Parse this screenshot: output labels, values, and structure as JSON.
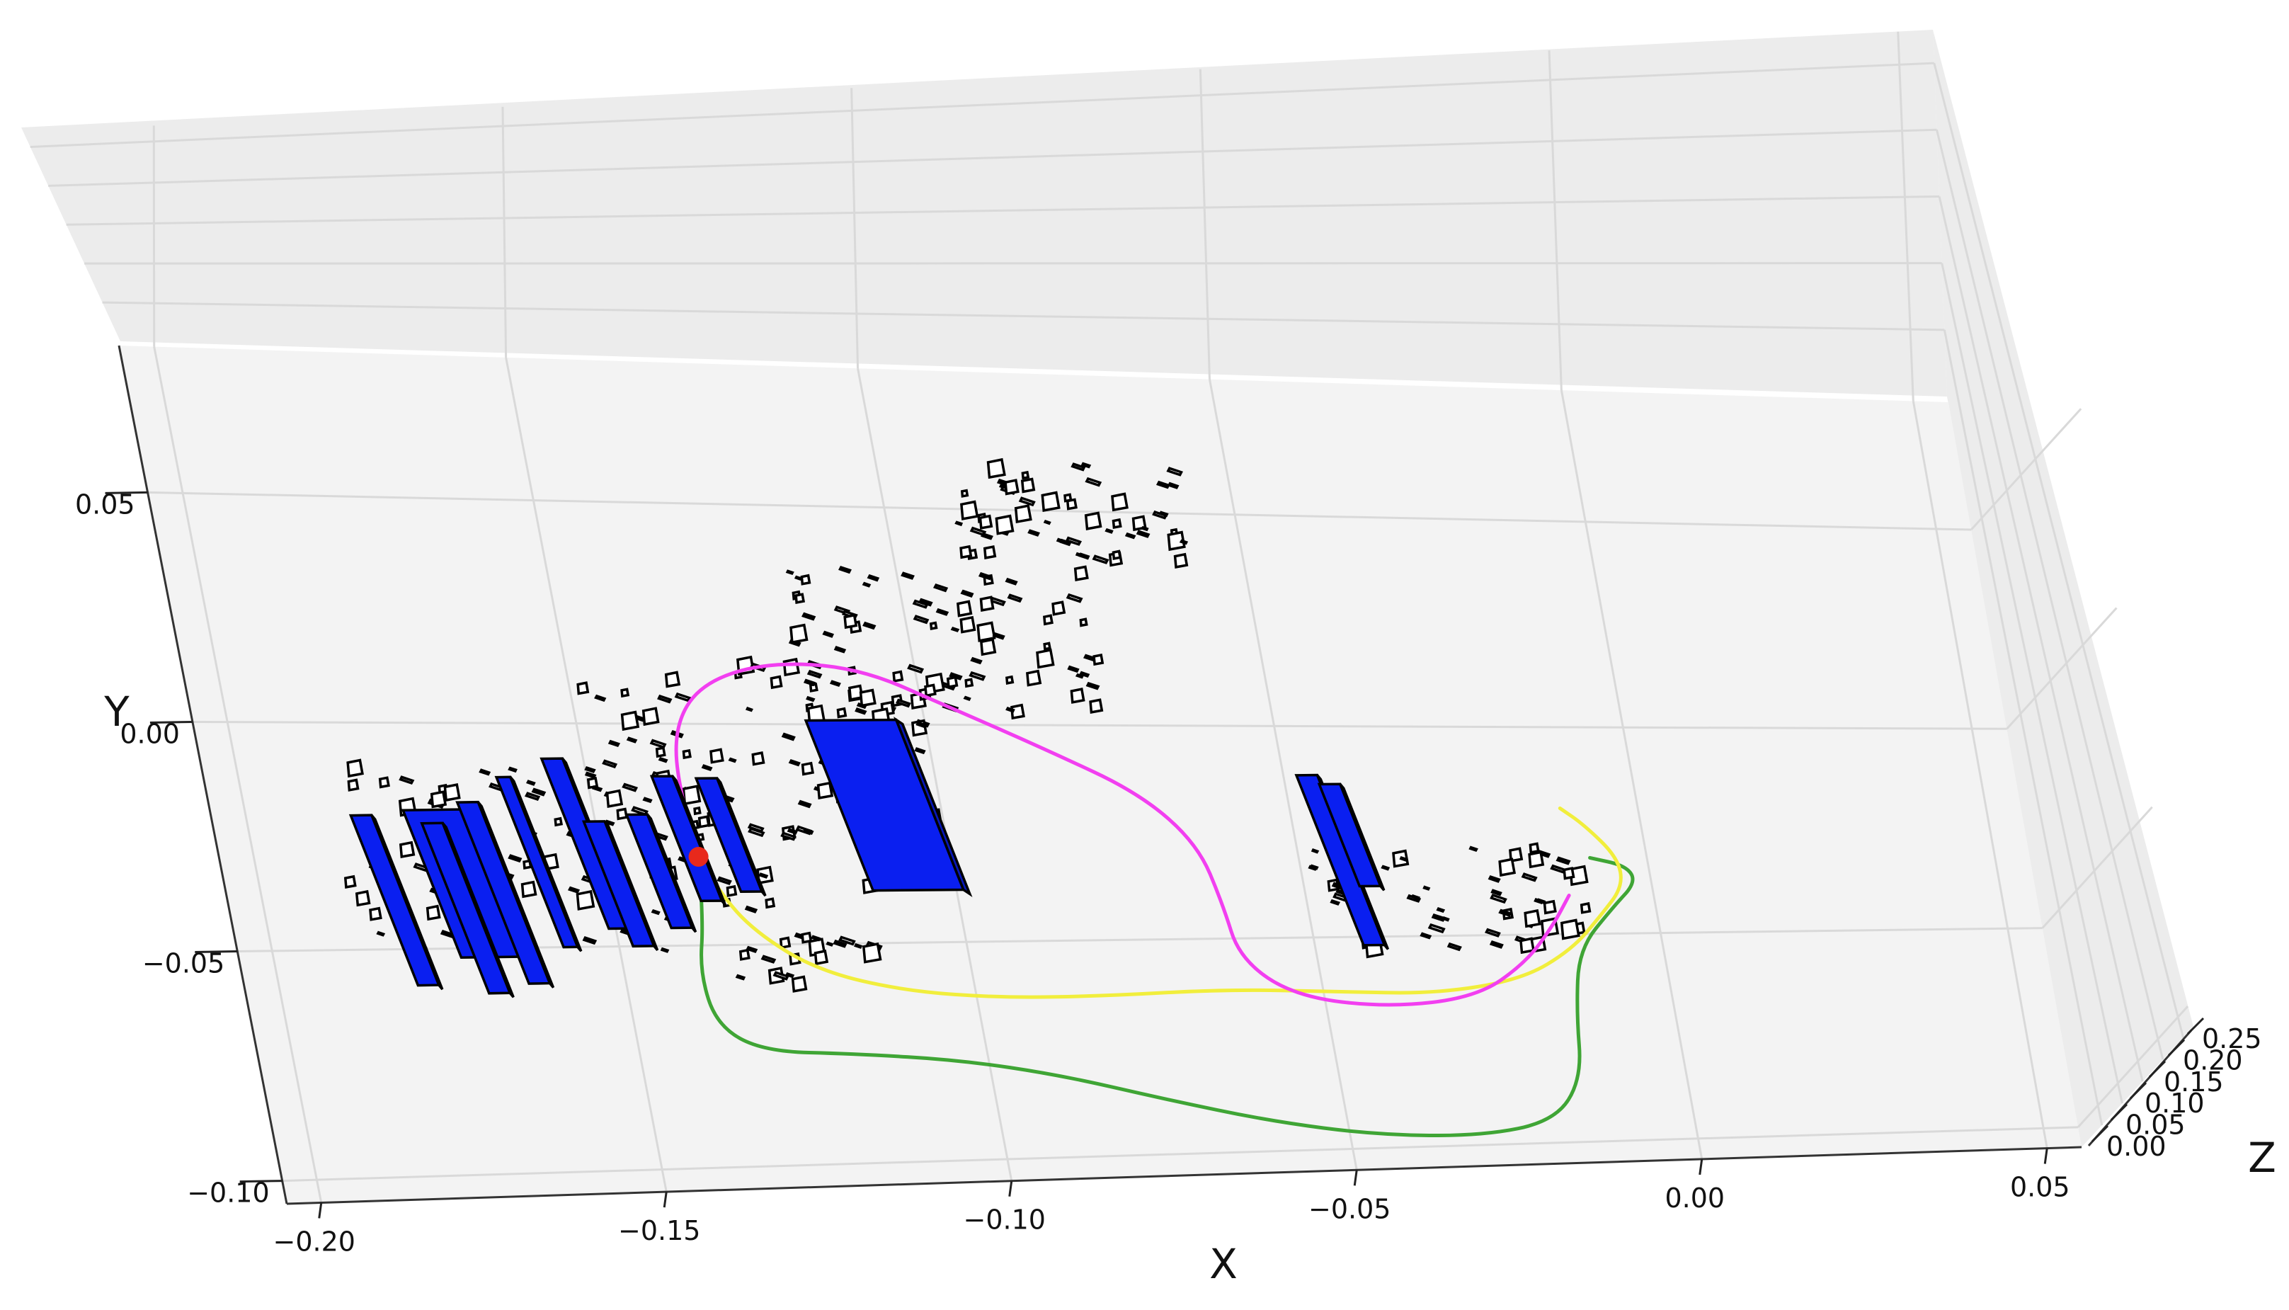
{
  "chart_data": {
    "type": "scatter",
    "title": "",
    "xlabel": "X",
    "ylabel": "Y",
    "zlabel": "Z",
    "xlim": [
      -0.205,
      0.055
    ],
    "ylim": [
      0.082,
      -0.105
    ],
    "zlim": [
      0.0,
      0.26
    ],
    "x_ticks": [
      "−0.20",
      "−0.15",
      "−0.10",
      "−0.05",
      "0.00",
      "0.05"
    ],
    "y_ticks": [
      "−0.10",
      "−0.05",
      "0.00",
      "0.05"
    ],
    "z_ticks": [
      "0.00",
      "0.05",
      "0.10",
      "0.15",
      "0.20",
      "0.25"
    ],
    "grid": true,
    "start_point": {
      "x": -0.14,
      "y": -0.036,
      "color": "#e8291c"
    },
    "series": [
      {
        "color": "#3fa535",
        "points": [
          [
            -0.14,
            -0.036
          ],
          [
            -0.141,
            -0.05
          ],
          [
            -0.143,
            -0.062
          ],
          [
            -0.142,
            -0.074
          ],
          [
            -0.136,
            -0.08
          ],
          [
            -0.123,
            -0.081
          ],
          [
            -0.108,
            -0.083
          ],
          [
            -0.094,
            -0.087
          ],
          [
            -0.08,
            -0.093
          ],
          [
            -0.065,
            -0.099
          ],
          [
            -0.05,
            -0.103
          ],
          [
            -0.035,
            -0.104
          ],
          [
            -0.024,
            -0.101
          ],
          [
            -0.019,
            -0.091
          ],
          [
            -0.018,
            -0.075
          ],
          [
            -0.016,
            -0.06
          ],
          [
            -0.01,
            -0.05
          ],
          [
            -0.006,
            -0.044
          ],
          [
            -0.007,
            -0.04
          ],
          [
            -0.012,
            -0.038
          ]
        ]
      },
      {
        "color": "#f1ee3c",
        "points": [
          [
            -0.14,
            -0.036
          ],
          [
            -0.138,
            -0.044
          ],
          [
            -0.134,
            -0.053
          ],
          [
            -0.126,
            -0.062
          ],
          [
            -0.114,
            -0.067
          ],
          [
            -0.1,
            -0.069
          ],
          [
            -0.085,
            -0.069
          ],
          [
            -0.068,
            -0.068
          ],
          [
            -0.052,
            -0.069
          ],
          [
            -0.038,
            -0.07
          ],
          [
            -0.025,
            -0.067
          ],
          [
            -0.017,
            -0.06
          ],
          [
            -0.012,
            -0.052
          ],
          [
            -0.008,
            -0.045
          ],
          [
            -0.008,
            -0.038
          ],
          [
            -0.012,
            -0.03
          ],
          [
            -0.015,
            -0.026
          ]
        ]
      },
      {
        "color": "#f23ff0",
        "points": [
          [
            -0.14,
            -0.036
          ],
          [
            -0.141,
            -0.022
          ],
          [
            -0.14,
            -0.007
          ],
          [
            -0.135,
            0.003
          ],
          [
            -0.125,
            0.008
          ],
          [
            -0.112,
            0.007
          ],
          [
            -0.1,
            -0.002
          ],
          [
            -0.087,
            -0.012
          ],
          [
            -0.075,
            -0.022
          ],
          [
            -0.068,
            -0.034
          ],
          [
            -0.066,
            -0.048
          ],
          [
            -0.065,
            -0.061
          ],
          [
            -0.058,
            -0.07
          ],
          [
            -0.045,
            -0.073
          ],
          [
            -0.032,
            -0.071
          ],
          [
            -0.024,
            -0.063
          ],
          [
            -0.019,
            -0.054
          ],
          [
            -0.016,
            -0.047
          ]
        ]
      }
    ],
    "columns": [
      {
        "x": -0.18,
        "y": -0.058,
        "h": 0.3,
        "w": 0.003
      },
      {
        "x": -0.173,
        "y": -0.052,
        "h": 0.26,
        "w": 0.009
      },
      {
        "x": -0.17,
        "y": -0.06,
        "h": 0.3,
        "w": 0.003
      },
      {
        "x": -0.164,
        "y": -0.058,
        "h": 0.32,
        "w": 0.003
      },
      {
        "x": -0.158,
        "y": -0.05,
        "h": 0.3,
        "w": 0.002
      },
      {
        "x": -0.151,
        "y": -0.046,
        "h": 0.3,
        "w": 0.003
      },
      {
        "x": -0.148,
        "y": -0.05,
        "h": 0.22,
        "w": 0.003
      },
      {
        "x": -0.142,
        "y": -0.046,
        "h": 0.2,
        "w": 0.003
      },
      {
        "x": -0.137,
        "y": -0.04,
        "h": 0.22,
        "w": 0.003
      },
      {
        "x": -0.131,
        "y": -0.038,
        "h": 0.2,
        "w": 0.003
      },
      {
        "x": -0.112,
        "y": -0.038,
        "h": 0.3,
        "w": 0.013
      },
      {
        "x": -0.043,
        "y": -0.052,
        "h": 0.3,
        "w": 0.003
      },
      {
        "x": -0.042,
        "y": -0.038,
        "h": 0.18,
        "w": 0.003
      }
    ]
  }
}
